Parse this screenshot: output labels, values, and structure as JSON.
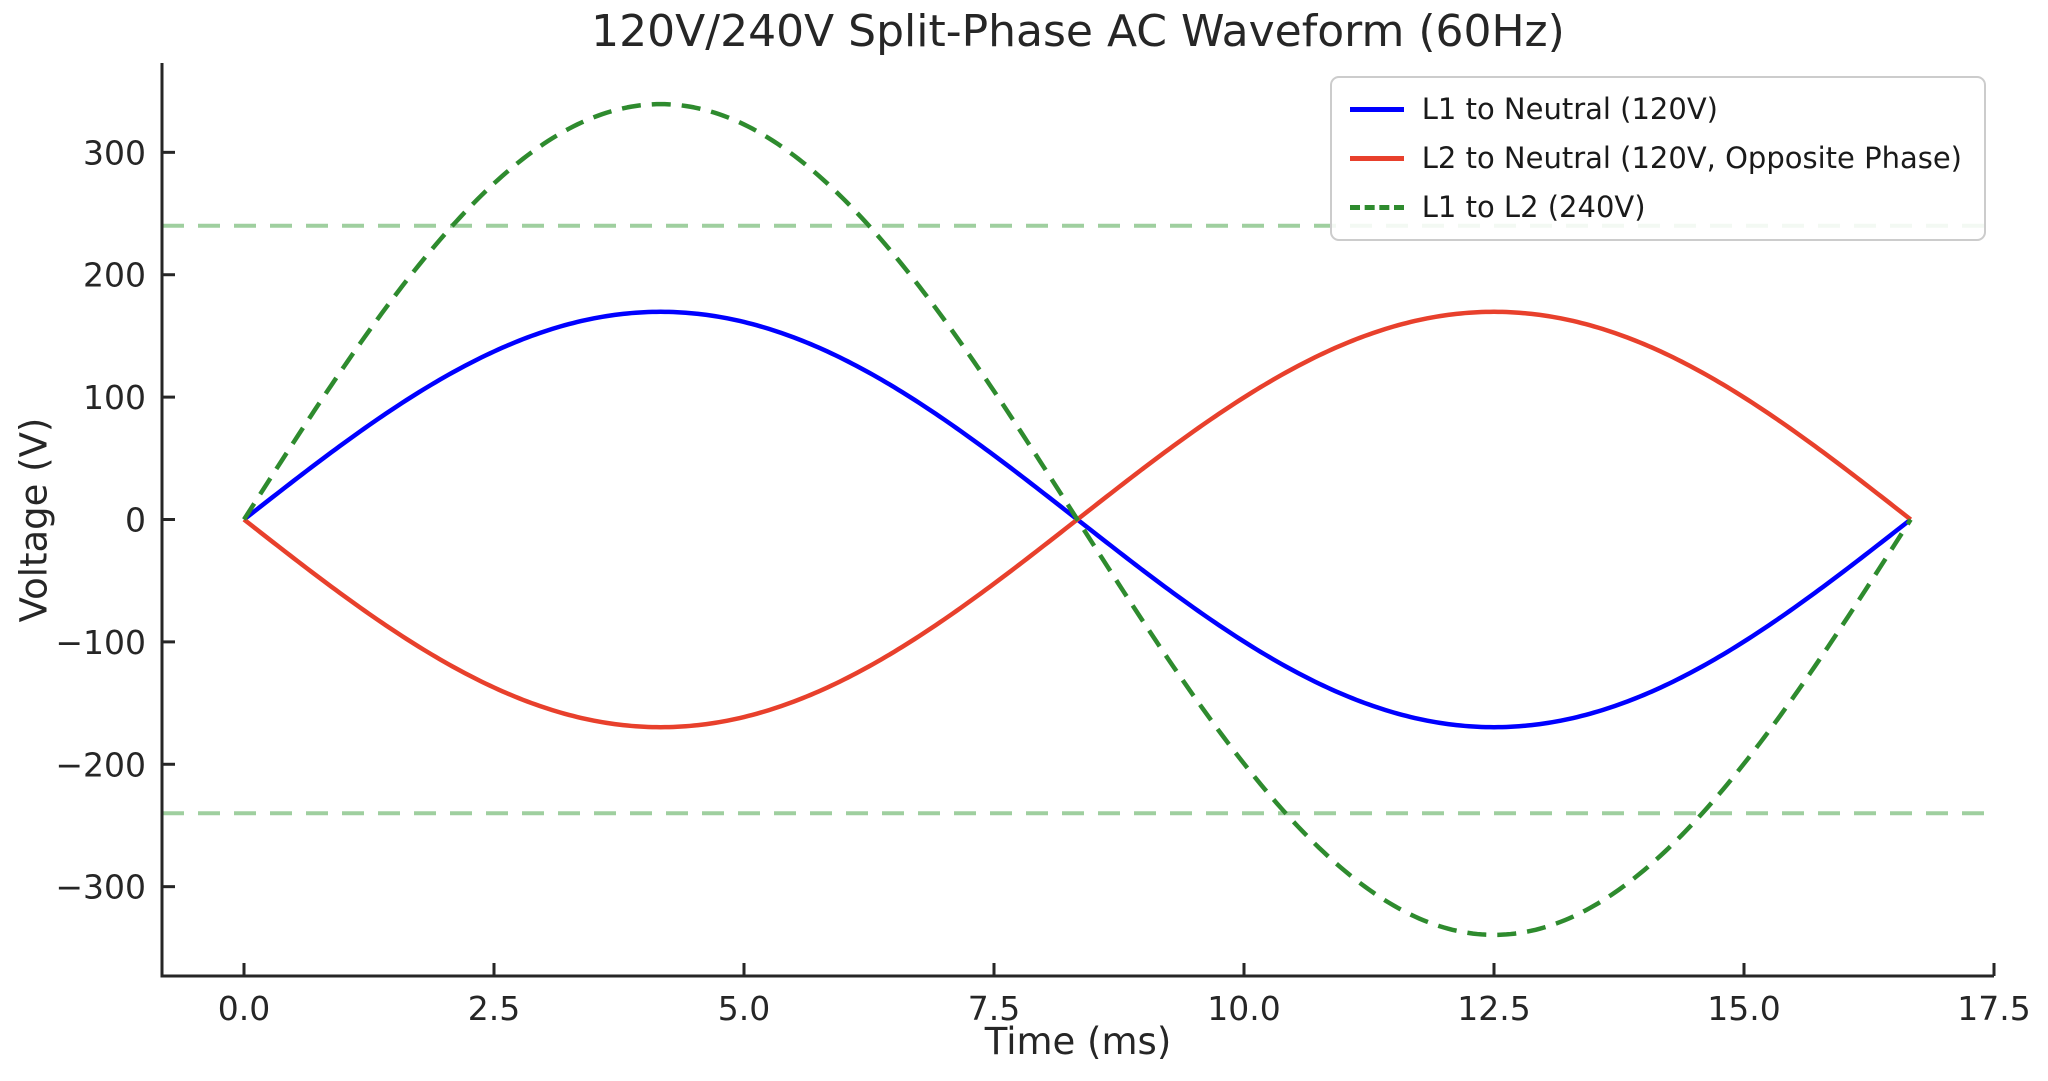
{
  "chart_data": {
    "type": "line",
    "title": "120V/240V Split-Phase AC Waveform (60Hz)",
    "xlabel": "Time (ms)",
    "ylabel": "Voltage (V)",
    "frequency_hz": 60,
    "period_ms": 16.6667,
    "xlim": [
      -0.82,
      17.5
    ],
    "ylim": [
      -373,
      373
    ],
    "x_ticks": [
      0.0,
      2.5,
      5.0,
      7.5,
      10.0,
      12.5,
      15.0,
      17.5
    ],
    "x_tick_labels": [
      "0.0",
      "2.5",
      "5.0",
      "7.5",
      "10.0",
      "12.5",
      "15.0",
      "17.5"
    ],
    "y_ticks": [
      300,
      200,
      100,
      0,
      -100,
      -200,
      -300
    ],
    "y_tick_labels": [
      "300",
      "200",
      "100",
      "0",
      "−100",
      "−200",
      "−300"
    ],
    "grid": false,
    "legend_position": "upper right",
    "background_color": "#ffffff",
    "axis_color": "#262626",
    "series": [
      {
        "label": "L1 to Neutral (120V)",
        "color": "#0000ff",
        "line_style": "solid",
        "rms_v": 120,
        "amplitude_v": 169.7,
        "phase_deg": 0,
        "t_start_ms": 0,
        "t_end_ms": 16.6667
      },
      {
        "label": "L2 to Neutral (120V, Opposite Phase)",
        "color": "#e8402c",
        "line_style": "solid",
        "rms_v": 120,
        "amplitude_v": 169.7,
        "phase_deg": 180,
        "t_start_ms": 0,
        "t_end_ms": 16.6667
      },
      {
        "label": "L1 to L2 (240V)",
        "color": "#2e8b2e",
        "line_style": "dashed",
        "rms_v": 240,
        "amplitude_v": 339.4,
        "phase_deg": 0,
        "t_start_ms": 0,
        "t_end_ms": 16.6667
      }
    ],
    "reference_lines": [
      {
        "value_v": 240,
        "color": "#9fcf9f",
        "line_style": "dashed"
      },
      {
        "value_v": -240,
        "color": "#9fcf9f",
        "line_style": "dashed"
      }
    ]
  }
}
